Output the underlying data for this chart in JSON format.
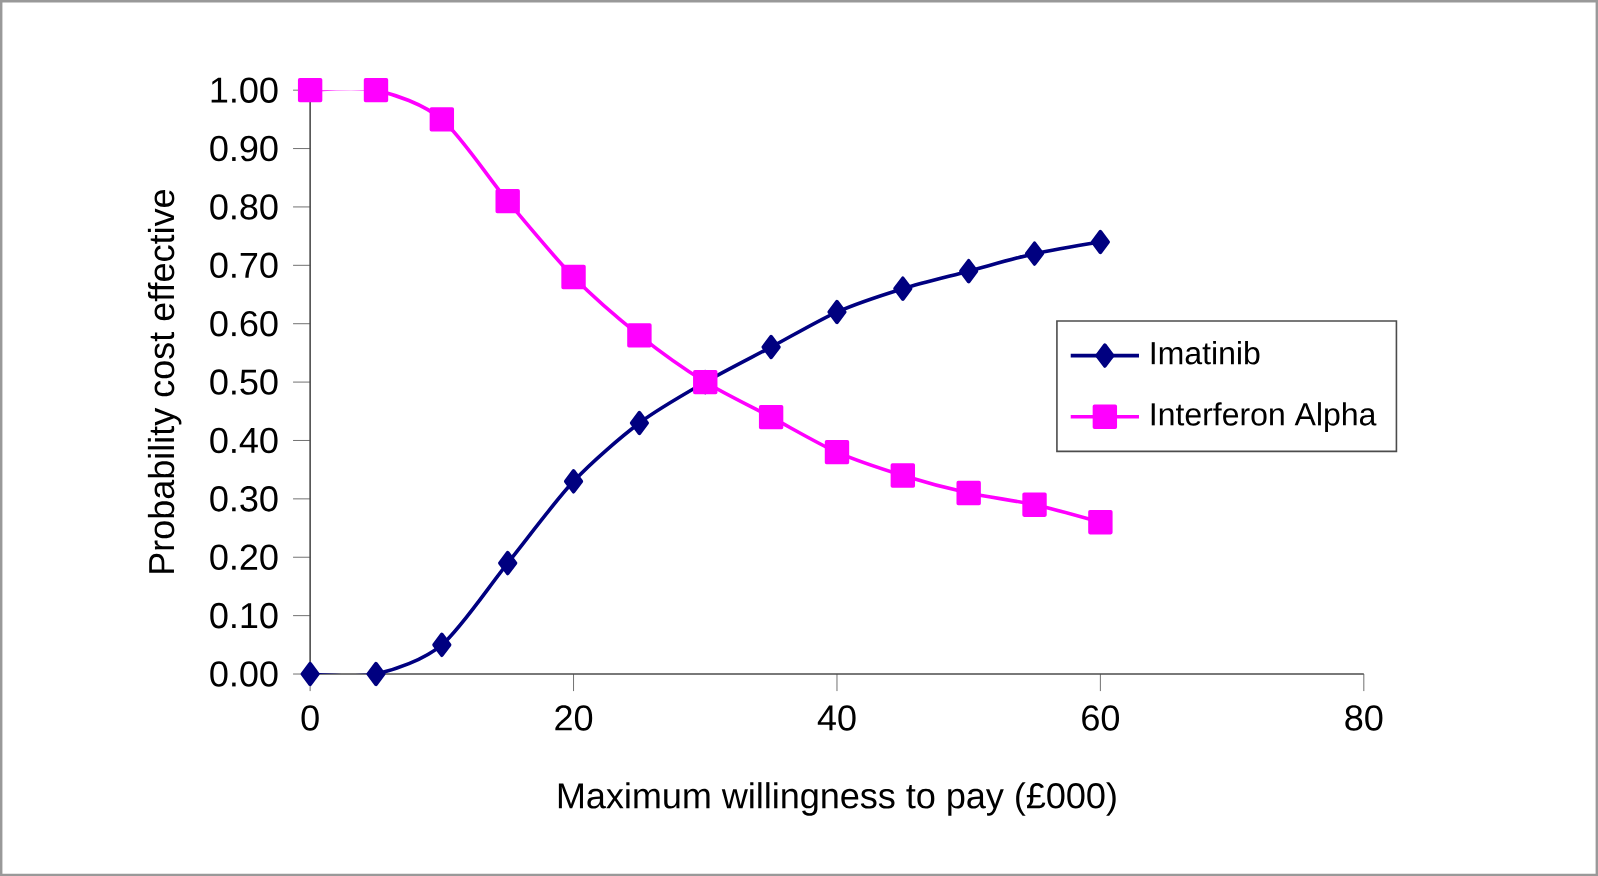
{
  "chart_data": {
    "type": "line",
    "xlabel": "Maximum willingness to pay (£000)",
    "ylabel": "Probability cost effective",
    "x": [
      0,
      5,
      10,
      15,
      20,
      25,
      30,
      35,
      40,
      45,
      50,
      55,
      60
    ],
    "series": [
      {
        "name": "Imatinib",
        "color": "#000080",
        "marker": "diamond",
        "values": [
          0,
          0,
          0.05,
          0.19,
          0.33,
          0.43,
          0.5,
          0.56,
          0.62,
          0.66,
          0.69,
          0.72,
          0.74
        ]
      },
      {
        "name": "Interferon Alpha",
        "color": "#ff00ff",
        "marker": "square",
        "values": [
          1,
          1,
          0.95,
          0.81,
          0.68,
          0.58,
          0.5,
          0.44,
          0.38,
          0.34,
          0.31,
          0.29,
          0.26
        ]
      }
    ],
    "xlim": [
      0,
      80
    ],
    "xticks": [
      0,
      20,
      40,
      60,
      80
    ],
    "ylim": [
      0,
      1
    ],
    "yticks": [
      {
        "value": 0,
        "label": "0.00"
      },
      {
        "value": 0.1,
        "label": "0.10"
      },
      {
        "value": 0.2,
        "label": "0.20"
      },
      {
        "value": 0.3,
        "label": "0.30"
      },
      {
        "value": 0.4,
        "label": "0.40"
      },
      {
        "value": 0.5,
        "label": "0.50"
      },
      {
        "value": 0.6,
        "label": "0.60"
      },
      {
        "value": 0.7,
        "label": "0.70"
      },
      {
        "value": 0.8,
        "label": "0.80"
      },
      {
        "value": 0.9,
        "label": "0.90"
      },
      {
        "value": 1,
        "label": "1.00"
      }
    ],
    "legend": "right",
    "grid": false,
    "line_style": "solid"
  }
}
